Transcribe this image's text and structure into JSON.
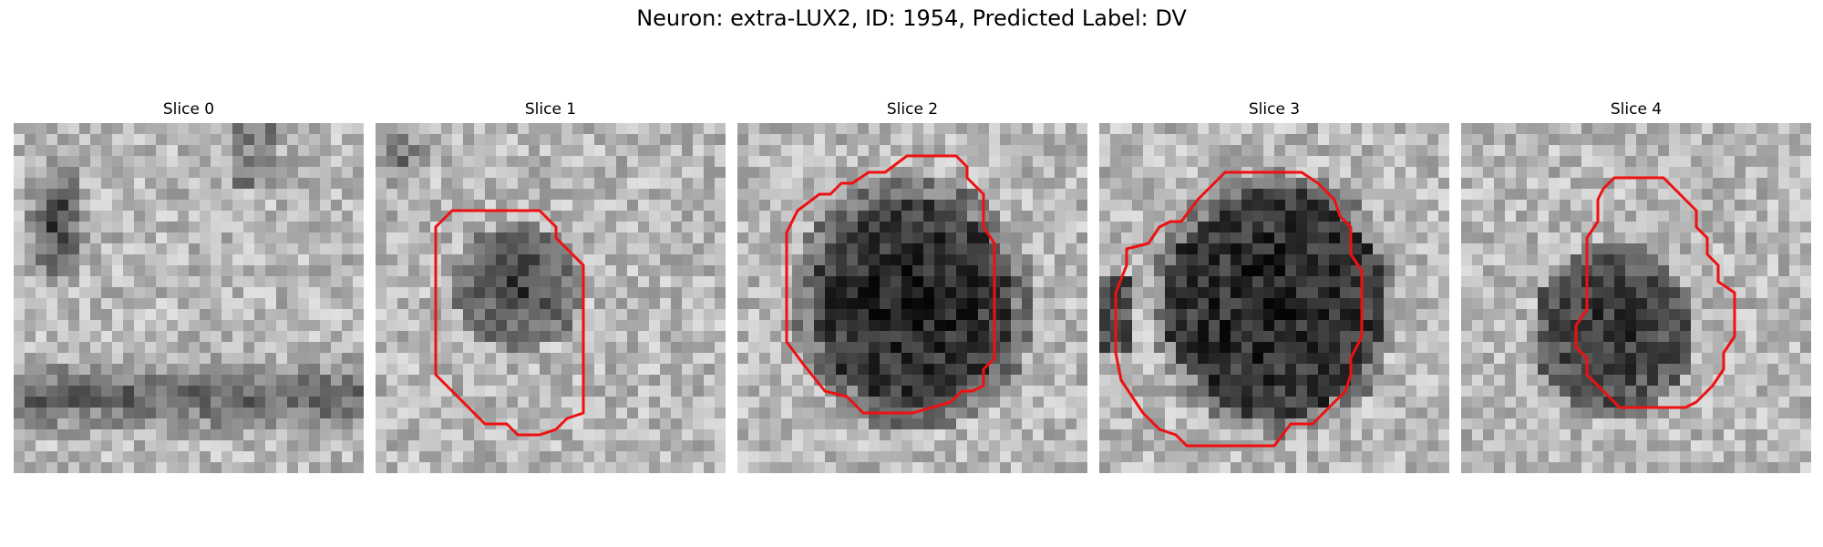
{
  "figure": {
    "title": "Neuron: extra-LUX2, ID: 1954, Predicted Label: DV"
  },
  "panels": [
    {
      "title": "Slice 0",
      "has_outline": false
    },
    {
      "title": "Slice 1",
      "has_outline": true
    },
    {
      "title": "Slice 2",
      "has_outline": true
    },
    {
      "title": "Slice 3",
      "has_outline": true
    },
    {
      "title": "Slice 4",
      "has_outline": true
    }
  ],
  "colors": {
    "outline": "#ee1111",
    "background": "#ffffff"
  }
}
